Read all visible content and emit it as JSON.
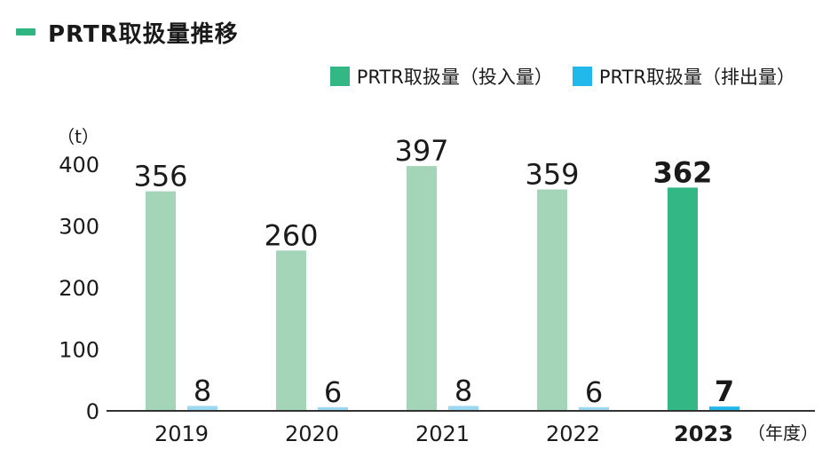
{
  "page": {
    "title": "PRTR取扱量推移"
  },
  "chart_data": {
    "type": "bar",
    "unit_label": "（t）",
    "x_unit_label": "（年度）",
    "categories": [
      "2019",
      "2020",
      "2021",
      "2022",
      "2023"
    ],
    "highlight_category": "2023",
    "ylim": [
      0,
      400
    ],
    "yticks": [
      0,
      100,
      200,
      300,
      400
    ],
    "series": [
      {
        "name": "PRTR取扱量（投入量）",
        "values": [
          356,
          260,
          397,
          359,
          362
        ],
        "color": "#a5d5b8",
        "highlight_color": "#33b885"
      },
      {
        "name": "PRTR取扱量（排出量）",
        "values": [
          8,
          6,
          8,
          6,
          7
        ],
        "color": "#9dd8f2",
        "highlight_color": "#21b8ec"
      }
    ]
  }
}
